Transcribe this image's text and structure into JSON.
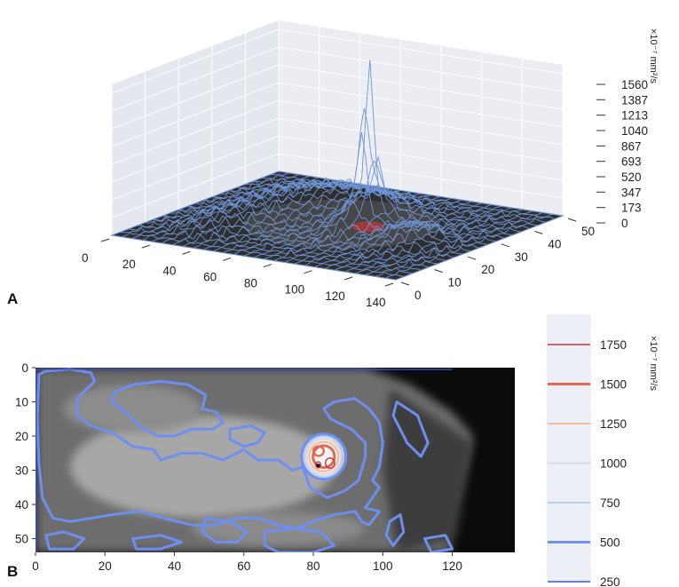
{
  "panel_a": {
    "label": "A"
  },
  "panel_b": {
    "label": "B"
  },
  "chart_data": [
    {
      "type": "surface",
      "panel": "A",
      "x_ticks": [
        0,
        20,
        40,
        60,
        80,
        100,
        120,
        140
      ],
      "y_ticks": [
        0,
        10,
        20,
        30,
        40,
        50
      ],
      "z_ticks": [
        0,
        173,
        347,
        520,
        693,
        867,
        1040,
        1213,
        1387,
        1560
      ],
      "z_unit": "×10⁻⁷ mm²/s",
      "xlim": [
        0,
        140
      ],
      "ylim": [
        0,
        50
      ],
      "zlim": [
        0,
        1560
      ],
      "peak": {
        "x": 82,
        "y": 27,
        "z": 1500
      },
      "surface_color": "#6f95d6",
      "base_color": "#2f2f2f",
      "pane_color": "#ebedf3"
    },
    {
      "type": "contour",
      "panel": "B",
      "x_ticks": [
        0,
        20,
        40,
        60,
        80,
        100,
        120
      ],
      "y_ticks": [
        0,
        10,
        20,
        30,
        40,
        50
      ],
      "xlim": [
        0,
        138
      ],
      "ylim": [
        0,
        54
      ],
      "levels": [
        1750,
        1500,
        1250,
        1000,
        750,
        500,
        250
      ],
      "level_colors": [
        "#c9333b",
        "#e06b51",
        "#f6b79a",
        "#d9d9d9",
        "#b7cff5",
        "#6e8ff0",
        "#3c52c7"
      ],
      "level_widths": [
        1.4,
        3,
        2,
        2,
        2,
        3,
        1.4
      ],
      "unit": "×10⁻⁷ mm²/s",
      "lesion_center": {
        "x": 83,
        "y": 26
      }
    }
  ]
}
